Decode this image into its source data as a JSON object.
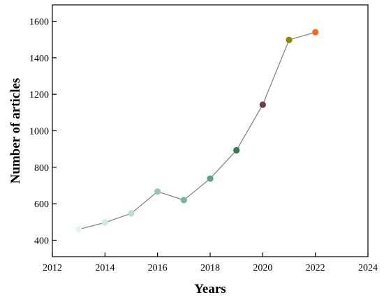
{
  "chart_data": {
    "type": "line",
    "title": "",
    "xlabel": "Years",
    "ylabel": "Number of articles",
    "xlim": [
      2012,
      2024
    ],
    "ylim": [
      310,
      1690
    ],
    "x_ticks": [
      2012,
      2014,
      2016,
      2018,
      2020,
      2022,
      2024
    ],
    "y_ticks": [
      400,
      600,
      800,
      1000,
      1200,
      1400,
      1600
    ],
    "grid": false,
    "legend": "none",
    "line_color": "#7f7f7f",
    "series": [
      {
        "x": [
          2013,
          2014,
          2015,
          2016,
          2017,
          2018,
          2019,
          2020,
          2021,
          2022
        ],
        "y": [
          460,
          497,
          547,
          667,
          620,
          738,
          893,
          1143,
          1498,
          1540
        ],
        "colors": [
          "#e5f5ee",
          "#cdebe0",
          "#b6e0d0",
          "#94c9b3",
          "#7ab39a",
          "#5fa37c",
          "#347a51",
          "#6b3f4b",
          "#8a8a00",
          "#ff6a13"
        ]
      }
    ]
  }
}
